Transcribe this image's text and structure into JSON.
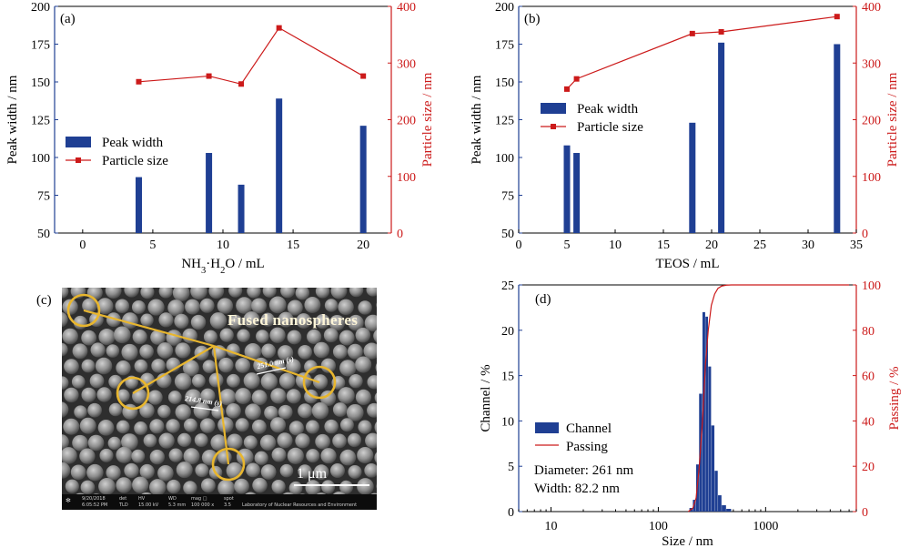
{
  "panels": {
    "a": {
      "label": "(a)",
      "chart_data": {
        "type": "bar+line",
        "xlabel": "NH₃·H₂O / mL",
        "ylabel_left": "Peak width / nm",
        "ylabel_right": "Particle size / nm",
        "xlim": [
          -2,
          22
        ],
        "xticks": [
          0,
          5,
          10,
          15,
          20
        ],
        "ylim_left": [
          50,
          200
        ],
        "yticks_left": [
          50,
          75,
          100,
          125,
          150,
          175,
          200
        ],
        "ylim_right": [
          0,
          400
        ],
        "yticks_right": [
          0,
          100,
          200,
          300,
          400
        ],
        "x": [
          4,
          9,
          11.3,
          14,
          20
        ],
        "series": [
          {
            "name": "Peak width",
            "axis": "left",
            "kind": "bar",
            "color": "#1f3f93",
            "values": [
              87,
              103,
              82,
              139,
              121
            ]
          },
          {
            "name": "Particle size",
            "axis": "right",
            "kind": "line",
            "color": "#cc1a1a",
            "values": [
              267,
              277,
              263,
              362,
              277
            ]
          }
        ],
        "legend": "left-middle"
      }
    },
    "b": {
      "label": "(b)",
      "chart_data": {
        "type": "bar+line",
        "xlabel": "TEOS / mL",
        "ylabel_left": "Peak width / nm",
        "ylabel_right": "Particle size / nm",
        "xlim": [
          0,
          35
        ],
        "xticks": [
          0,
          5,
          10,
          15,
          20,
          25,
          30,
          35
        ],
        "ylim_left": [
          50,
          200
        ],
        "yticks_left": [
          50,
          75,
          100,
          125,
          150,
          175,
          200
        ],
        "ylim_right": [
          0,
          400
        ],
        "yticks_right": [
          0,
          100,
          200,
          300,
          400
        ],
        "x": [
          5,
          6,
          18,
          21,
          33
        ],
        "series": [
          {
            "name": "Peak width",
            "axis": "left",
            "kind": "bar",
            "color": "#1f3f93",
            "values": [
              108,
              103,
              123,
              176,
              175
            ]
          },
          {
            "name": "Particle size",
            "axis": "right",
            "kind": "line",
            "color": "#cc1a1a",
            "values": [
              254,
              272,
              352,
              355,
              382
            ]
          }
        ],
        "legend": "left-middle"
      }
    },
    "c": {
      "label": "(c)",
      "annotation": "Fused  nanospheres",
      "measure_1": "251.0 nm (s)",
      "measure_2": "214.8 nm (s)",
      "scale_bar": "1 μm",
      "info_bar": {
        "date": "9/20/2018",
        "time": "6:05:52 PM",
        "det_label": "det",
        "det": "TLD",
        "hv_label": "HV",
        "hv": "15.00 kV",
        "wd_label": "WD",
        "wd": "5.3 mm",
        "mag_label": "mag □",
        "mag": "100 000 x",
        "spot_label": "spot",
        "spot": "3.5",
        "lab": "Laboratory of Nuclear Resources and Environment"
      }
    },
    "d": {
      "label": "(d)",
      "chart_data": {
        "type": "histogram+line",
        "xlabel": "Size / nm",
        "ylabel_left": "Channel / %",
        "ylabel_right": "Passing / %",
        "xscale": "log",
        "xlim": [
          5,
          7000
        ],
        "xticks": [
          10,
          100,
          1000
        ],
        "xtick_labels": [
          "10",
          "100",
          "1000"
        ],
        "ylim_left": [
          0,
          25
        ],
        "yticks_left": [
          0,
          5,
          10,
          15,
          20,
          25
        ],
        "ylim_right": [
          0,
          100
        ],
        "yticks_right": [
          0,
          20,
          40,
          60,
          80,
          100
        ],
        "bins": [
          {
            "lo": 195,
            "hi": 210,
            "value": 0.4
          },
          {
            "lo": 210,
            "hi": 225,
            "value": 1.3
          },
          {
            "lo": 225,
            "hi": 240,
            "value": 5.2
          },
          {
            "lo": 240,
            "hi": 258,
            "value": 13
          },
          {
            "lo": 258,
            "hi": 275,
            "value": 22
          },
          {
            "lo": 275,
            "hi": 292,
            "value": 21.5
          },
          {
            "lo": 292,
            "hi": 312,
            "value": 16
          },
          {
            "lo": 312,
            "hi": 335,
            "value": 9.5
          },
          {
            "lo": 335,
            "hi": 360,
            "value": 4.5
          },
          {
            "lo": 360,
            "hi": 390,
            "value": 1.8
          },
          {
            "lo": 390,
            "hi": 430,
            "value": 0.7
          },
          {
            "lo": 430,
            "hi": 480,
            "value": 0.3
          }
        ],
        "passing": {
          "x": [
            190,
            210,
            225,
            240,
            258,
            275,
            292,
            312,
            335,
            360,
            390,
            430,
            480,
            6000
          ],
          "y": [
            0,
            1.5,
            6,
            19,
            40,
            65,
            80,
            91,
            96,
            98.5,
            99.5,
            99.9,
            100,
            100
          ]
        },
        "series": [
          {
            "name": "Channel",
            "color": "#1f3f93"
          },
          {
            "name": "Passing",
            "color": "#cc1a1a"
          }
        ],
        "notes": [
          "Diameter: 261 nm",
          "Width: 82.2 nm"
        ],
        "legend": "left-middle"
      }
    }
  },
  "colors": {
    "bar": "#1f3f93",
    "line": "#cc1a1a",
    "leftAxis": "#1f3f93",
    "rightAxis": "#cc1a1a",
    "sem_circle": "#e8b62e"
  }
}
